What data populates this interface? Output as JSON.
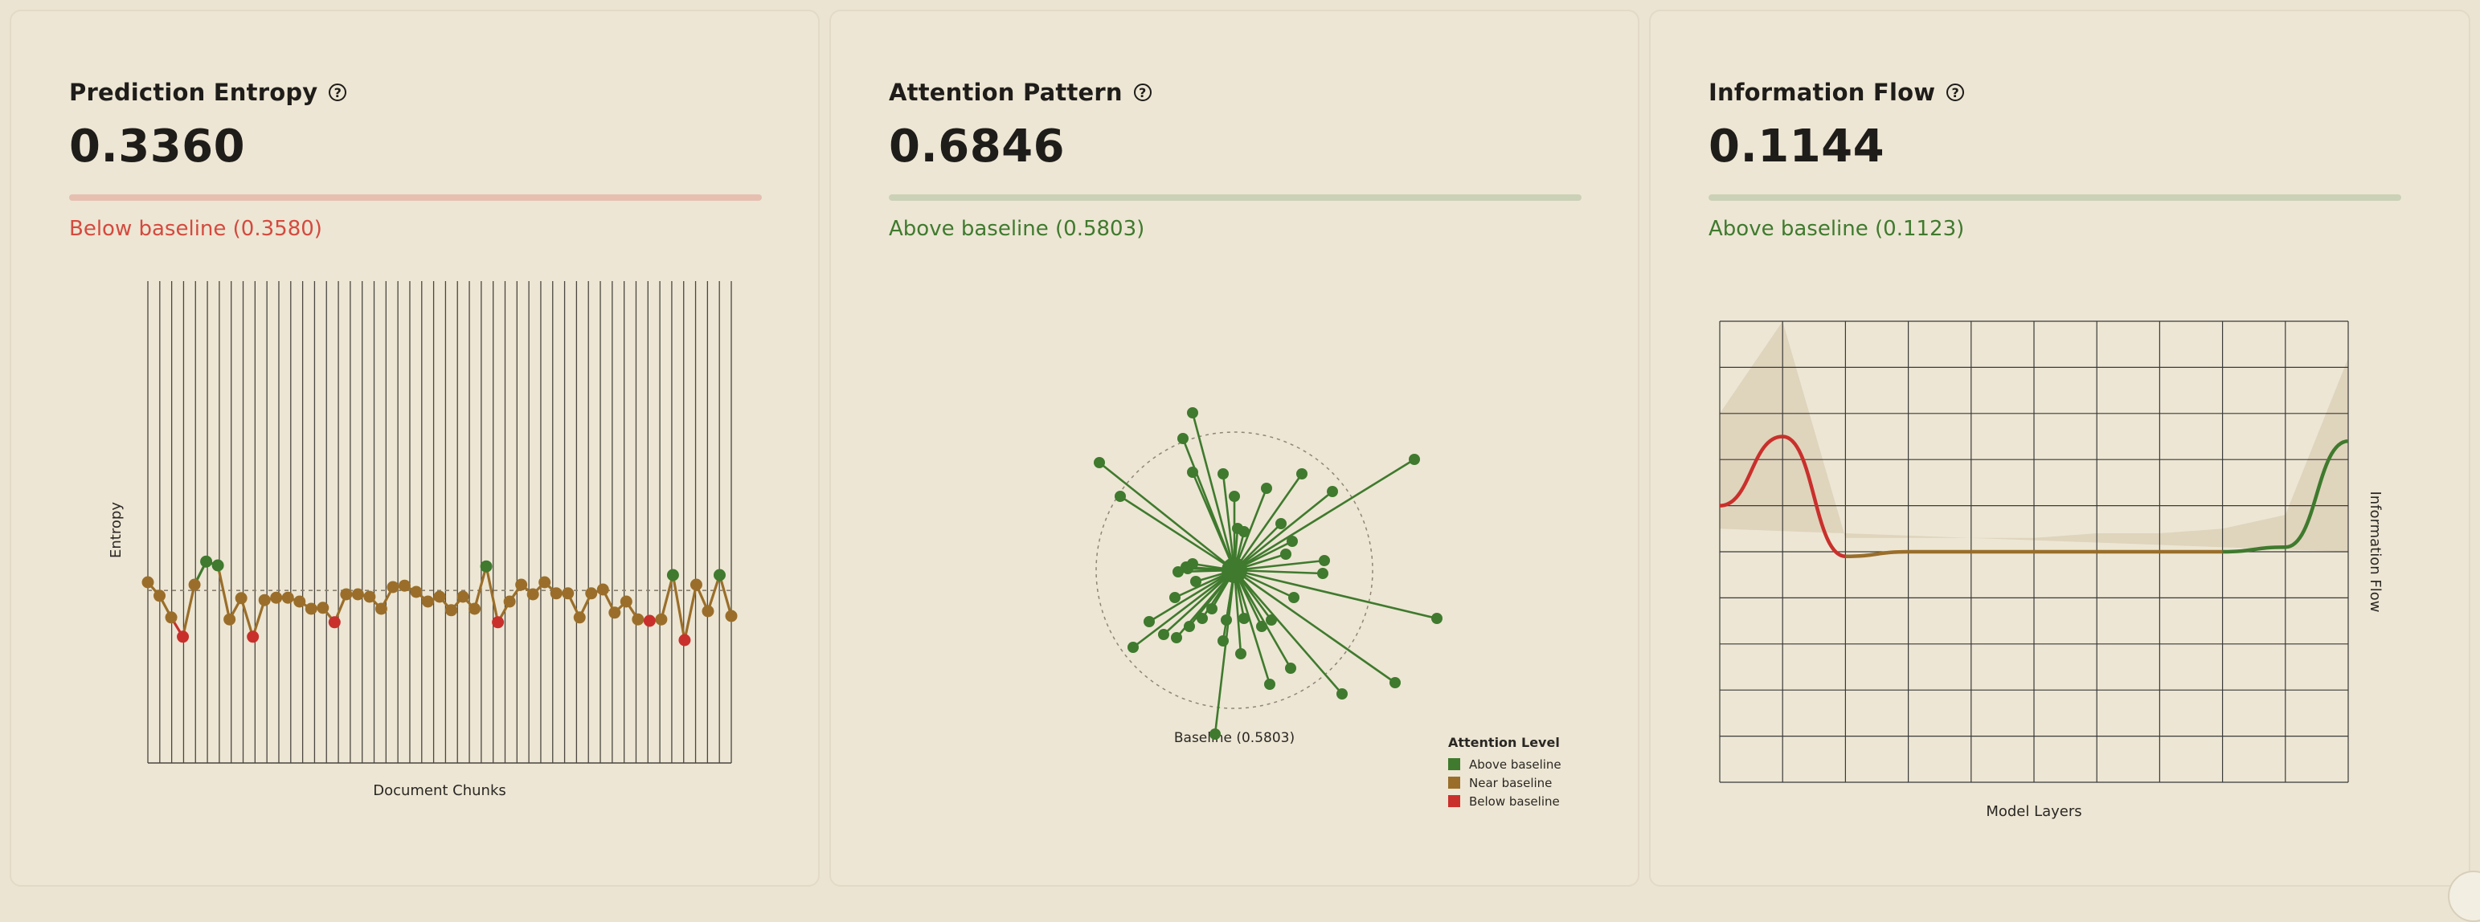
{
  "colors": {
    "above": "#3f7a2e",
    "near": "#9a6e2a",
    "below": "#c9302c",
    "grid": "#3a3a3a"
  },
  "cards": {
    "entropy": {
      "title": "Prediction Entropy",
      "value": "0.3360",
      "status": "Below baseline (0.3580)",
      "status_color": "#d44a3f",
      "bar_color": "#e6bfb0"
    },
    "attention": {
      "title": "Attention Pattern",
      "value": "0.6846",
      "status": "Above baseline (0.5803)",
      "status_color": "#3f7a2e",
      "bar_color": "#cbd1b6"
    },
    "flow": {
      "title": "Information Flow",
      "value": "0.1144",
      "status": "Above baseline (0.1123)",
      "status_color": "#3f7a2e",
      "bar_color": "#cbd1b6"
    }
  },
  "help_icon": "?",
  "chart_data": [
    {
      "type": "line",
      "xlabel": "Document Chunks",
      "ylabel": "Entropy",
      "baseline": 0.358,
      "ylim": [
        0,
        1
      ],
      "values": [
        0.375,
        0.347,
        0.302,
        0.262,
        0.37,
        0.418,
        0.41,
        0.298,
        0.342,
        0.262,
        0.338,
        0.343,
        0.343,
        0.335,
        0.32,
        0.322,
        0.292,
        0.35,
        0.35,
        0.345,
        0.32,
        0.365,
        0.368,
        0.355,
        0.335,
        0.345,
        0.317,
        0.345,
        0.32,
        0.408,
        0.292,
        0.335,
        0.37,
        0.35,
        0.375,
        0.352,
        0.352,
        0.302,
        0.352,
        0.36,
        0.312,
        0.335,
        0.298,
        0.295,
        0.298,
        0.39,
        0.255,
        0.37,
        0.315,
        0.39,
        0.305
      ]
    },
    {
      "type": "scatter",
      "baseline_label": "Baseline (0.5803)",
      "legend_title": "Attention Level",
      "legend": [
        "Above baseline",
        "Near baseline",
        "Below baseline"
      ],
      "points": [
        {
          "dx": -0.26,
          "dy": -0.98,
          "lvl": "above"
        },
        {
          "dx": -0.32,
          "dy": -0.82,
          "lvl": "above"
        },
        {
          "dx": -0.84,
          "dy": -0.67,
          "lvl": "above"
        },
        {
          "dx": -0.71,
          "dy": -0.46,
          "lvl": "above"
        },
        {
          "dx": -0.26,
          "dy": -0.61,
          "lvl": "above"
        },
        {
          "dx": 0.0,
          "dy": -0.46,
          "lvl": "above"
        },
        {
          "dx": -0.07,
          "dy": -0.6,
          "lvl": "above"
        },
        {
          "dx": 0.2,
          "dy": -0.51,
          "lvl": "above"
        },
        {
          "dx": 0.42,
          "dy": -0.6,
          "lvl": "above"
        },
        {
          "dx": 0.61,
          "dy": -0.49,
          "lvl": "above"
        },
        {
          "dx": 1.12,
          "dy": -0.69,
          "lvl": "above"
        },
        {
          "dx": 0.29,
          "dy": -0.29,
          "lvl": "above"
        },
        {
          "dx": 0.06,
          "dy": -0.24,
          "lvl": "above"
        },
        {
          "dx": 0.02,
          "dy": -0.26,
          "lvl": "above"
        },
        {
          "dx": 0.36,
          "dy": -0.18,
          "lvl": "above"
        },
        {
          "dx": 0.32,
          "dy": -0.1,
          "lvl": "above"
        },
        {
          "dx": 0.56,
          "dy": -0.06,
          "lvl": "above"
        },
        {
          "dx": -0.26,
          "dy": -0.04,
          "lvl": "above"
        },
        {
          "dx": -0.29,
          "dy": -0.01,
          "lvl": "above"
        },
        {
          "dx": -0.35,
          "dy": 0.01,
          "lvl": "above"
        },
        {
          "dx": 0.55,
          "dy": 0.02,
          "lvl": "above"
        },
        {
          "dx": -0.24,
          "dy": 0.07,
          "lvl": "above"
        },
        {
          "dx": -0.37,
          "dy": 0.17,
          "lvl": "above"
        },
        {
          "dx": 0.37,
          "dy": 0.17,
          "lvl": "above"
        },
        {
          "dx": -0.14,
          "dy": 0.24,
          "lvl": "above"
        },
        {
          "dx": -0.05,
          "dy": 0.31,
          "lvl": "above"
        },
        {
          "dx": -0.28,
          "dy": 0.35,
          "lvl": "above"
        },
        {
          "dx": -0.2,
          "dy": 0.3,
          "lvl": "above"
        },
        {
          "dx": 0.06,
          "dy": 0.3,
          "lvl": "above"
        },
        {
          "dx": 0.23,
          "dy": 0.31,
          "lvl": "above"
        },
        {
          "dx": 0.17,
          "dy": 0.35,
          "lvl": "above"
        },
        {
          "dx": -0.53,
          "dy": 0.32,
          "lvl": "above"
        },
        {
          "dx": -0.36,
          "dy": 0.42,
          "lvl": "above"
        },
        {
          "dx": -0.07,
          "dy": 0.44,
          "lvl": "above"
        },
        {
          "dx": 0.04,
          "dy": 0.52,
          "lvl": "above"
        },
        {
          "dx": 0.35,
          "dy": 0.61,
          "lvl": "above"
        },
        {
          "dx": 1.0,
          "dy": 0.7,
          "lvl": "above"
        },
        {
          "dx": 1.26,
          "dy": 0.3,
          "lvl": "above"
        },
        {
          "dx": -0.63,
          "dy": 0.48,
          "lvl": "above"
        },
        {
          "dx": -0.44,
          "dy": 0.4,
          "lvl": "above"
        },
        {
          "dx": 0.22,
          "dy": 0.71,
          "lvl": "above"
        },
        {
          "dx": 0.67,
          "dy": 0.77,
          "lvl": "above"
        },
        {
          "dx": -0.12,
          "dy": 1.02,
          "lvl": "above"
        },
        {
          "dx": -0.3,
          "dy": -0.02,
          "lvl": "above"
        }
      ]
    },
    {
      "type": "area",
      "xlabel": "Model Layers",
      "ylabel": "Information Flow",
      "x": [
        0,
        0.1,
        0.2,
        0.3,
        0.4,
        0.5,
        0.6,
        0.7,
        0.8,
        0.9,
        1.0
      ],
      "values": [
        0.6,
        0.75,
        0.49,
        0.5,
        0.5,
        0.5,
        0.5,
        0.5,
        0.5,
        0.51,
        0.74
      ],
      "band_upper": [
        0.8,
        1.0,
        0.53,
        0.53,
        0.53,
        0.53,
        0.54,
        0.54,
        0.55,
        0.58,
        0.92
      ]
    }
  ]
}
